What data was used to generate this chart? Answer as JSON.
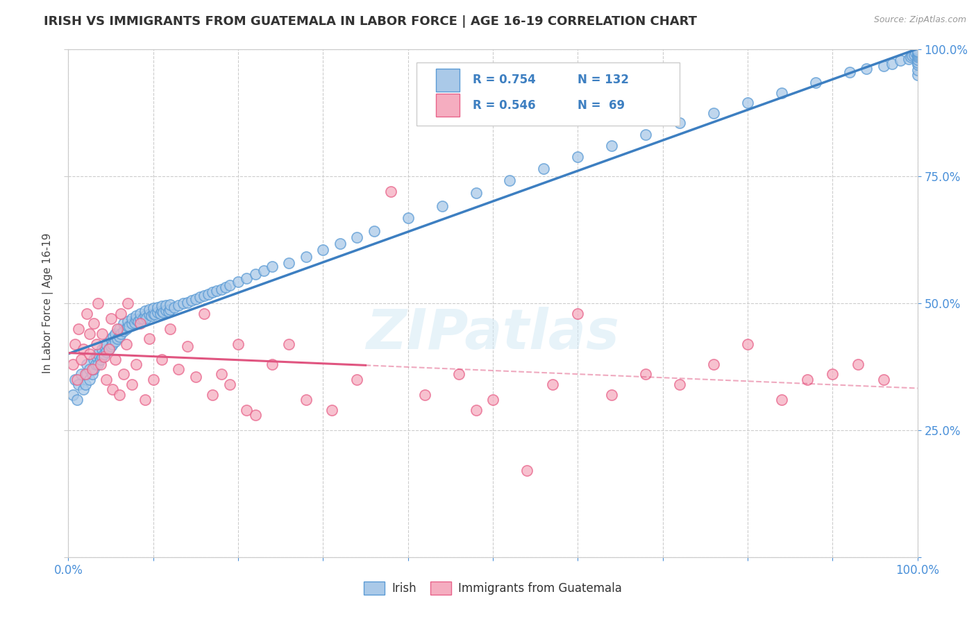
{
  "title": "IRISH VS IMMIGRANTS FROM GUATEMALA IN LABOR FORCE | AGE 16-19 CORRELATION CHART",
  "source": "Source: ZipAtlas.com",
  "ylabel": "In Labor Force | Age 16-19",
  "xlim": [
    0.0,
    1.0
  ],
  "ylim": [
    0.0,
    1.0
  ],
  "legend_irish_label": "Irish",
  "legend_guate_label": "Immigrants from Guatemala",
  "R_irish": 0.754,
  "N_irish": 132,
  "R_guate": 0.546,
  "N_guate": 69,
  "irish_color": "#aac9e8",
  "guate_color": "#f5adc0",
  "irish_edge_color": "#5b9bd5",
  "guate_edge_color": "#e8638a",
  "irish_line_color": "#3d7fc1",
  "guate_line_color": "#e05580",
  "watermark": "ZIPatlas",
  "background_color": "#ffffff",
  "irish_scatter_x": [
    0.005,
    0.008,
    0.01,
    0.012,
    0.015,
    0.018,
    0.02,
    0.022,
    0.022,
    0.025,
    0.025,
    0.028,
    0.03,
    0.03,
    0.032,
    0.033,
    0.035,
    0.035,
    0.038,
    0.04,
    0.04,
    0.042,
    0.043,
    0.045,
    0.045,
    0.048,
    0.05,
    0.05,
    0.052,
    0.053,
    0.055,
    0.055,
    0.058,
    0.06,
    0.06,
    0.062,
    0.065,
    0.065,
    0.068,
    0.07,
    0.07,
    0.072,
    0.075,
    0.075,
    0.078,
    0.08,
    0.08,
    0.082,
    0.085,
    0.085,
    0.088,
    0.09,
    0.09,
    0.092,
    0.095,
    0.095,
    0.098,
    0.1,
    0.1,
    0.102,
    0.105,
    0.105,
    0.108,
    0.11,
    0.11,
    0.112,
    0.115,
    0.115,
    0.118,
    0.12,
    0.12,
    0.125,
    0.13,
    0.135,
    0.14,
    0.145,
    0.15,
    0.155,
    0.16,
    0.165,
    0.17,
    0.175,
    0.18,
    0.185,
    0.19,
    0.2,
    0.21,
    0.22,
    0.23,
    0.24,
    0.26,
    0.28,
    0.3,
    0.32,
    0.34,
    0.36,
    0.4,
    0.44,
    0.48,
    0.52,
    0.56,
    0.6,
    0.64,
    0.68,
    0.72,
    0.76,
    0.8,
    0.84,
    0.88,
    0.92,
    0.94,
    0.96,
    0.97,
    0.98,
    0.99,
    0.992,
    0.994,
    0.996,
    0.998,
    1.0,
    1.0,
    1.0,
    1.0,
    1.0,
    1.0,
    1.0,
    1.0,
    1.0,
    1.0,
    1.0,
    1.0,
    1.0
  ],
  "irish_scatter_y": [
    0.32,
    0.35,
    0.31,
    0.34,
    0.36,
    0.33,
    0.34,
    0.36,
    0.38,
    0.35,
    0.37,
    0.36,
    0.37,
    0.39,
    0.38,
    0.395,
    0.38,
    0.4,
    0.39,
    0.395,
    0.41,
    0.4,
    0.415,
    0.405,
    0.42,
    0.41,
    0.415,
    0.43,
    0.42,
    0.435,
    0.425,
    0.44,
    0.43,
    0.435,
    0.45,
    0.44,
    0.445,
    0.46,
    0.45,
    0.455,
    0.465,
    0.455,
    0.46,
    0.47,
    0.462,
    0.468,
    0.475,
    0.465,
    0.47,
    0.48,
    0.47,
    0.475,
    0.485,
    0.472,
    0.478,
    0.488,
    0.475,
    0.48,
    0.49,
    0.478,
    0.482,
    0.492,
    0.48,
    0.485,
    0.495,
    0.482,
    0.486,
    0.496,
    0.484,
    0.488,
    0.498,
    0.492,
    0.496,
    0.5,
    0.502,
    0.505,
    0.508,
    0.512,
    0.515,
    0.518,
    0.522,
    0.525,
    0.528,
    0.532,
    0.535,
    0.542,
    0.55,
    0.558,
    0.565,
    0.572,
    0.58,
    0.592,
    0.605,
    0.618,
    0.63,
    0.642,
    0.668,
    0.692,
    0.718,
    0.742,
    0.765,
    0.788,
    0.81,
    0.832,
    0.855,
    0.875,
    0.895,
    0.915,
    0.935,
    0.955,
    0.962,
    0.968,
    0.972,
    0.978,
    0.982,
    0.985,
    0.988,
    0.99,
    0.993,
    0.95,
    0.96,
    0.97,
    0.975,
    0.98,
    0.985,
    0.988,
    0.991,
    0.993,
    0.996,
    0.998,
    1.0,
    0.997
  ],
  "guate_scatter_x": [
    0.005,
    0.008,
    0.01,
    0.012,
    0.015,
    0.018,
    0.02,
    0.022,
    0.025,
    0.025,
    0.028,
    0.03,
    0.033,
    0.035,
    0.038,
    0.04,
    0.042,
    0.045,
    0.048,
    0.05,
    0.052,
    0.055,
    0.058,
    0.06,
    0.062,
    0.065,
    0.068,
    0.07,
    0.075,
    0.08,
    0.085,
    0.09,
    0.095,
    0.1,
    0.11,
    0.12,
    0.13,
    0.14,
    0.15,
    0.16,
    0.17,
    0.18,
    0.19,
    0.2,
    0.21,
    0.22,
    0.24,
    0.26,
    0.28,
    0.31,
    0.34,
    0.38,
    0.42,
    0.46,
    0.48,
    0.5,
    0.54,
    0.57,
    0.6,
    0.64,
    0.68,
    0.72,
    0.76,
    0.8,
    0.84,
    0.87,
    0.9,
    0.93,
    0.96
  ],
  "guate_scatter_y": [
    0.38,
    0.42,
    0.35,
    0.45,
    0.39,
    0.41,
    0.36,
    0.48,
    0.4,
    0.44,
    0.37,
    0.46,
    0.42,
    0.5,
    0.38,
    0.44,
    0.395,
    0.35,
    0.41,
    0.47,
    0.33,
    0.39,
    0.45,
    0.32,
    0.48,
    0.36,
    0.42,
    0.5,
    0.34,
    0.38,
    0.46,
    0.31,
    0.43,
    0.35,
    0.39,
    0.45,
    0.37,
    0.415,
    0.355,
    0.48,
    0.32,
    0.36,
    0.34,
    0.42,
    0.29,
    0.28,
    0.38,
    0.42,
    0.31,
    0.29,
    0.35,
    0.72,
    0.32,
    0.36,
    0.29,
    0.31,
    0.17,
    0.34,
    0.48,
    0.32,
    0.36,
    0.34,
    0.38,
    0.42,
    0.31,
    0.35,
    0.36,
    0.38,
    0.35
  ]
}
